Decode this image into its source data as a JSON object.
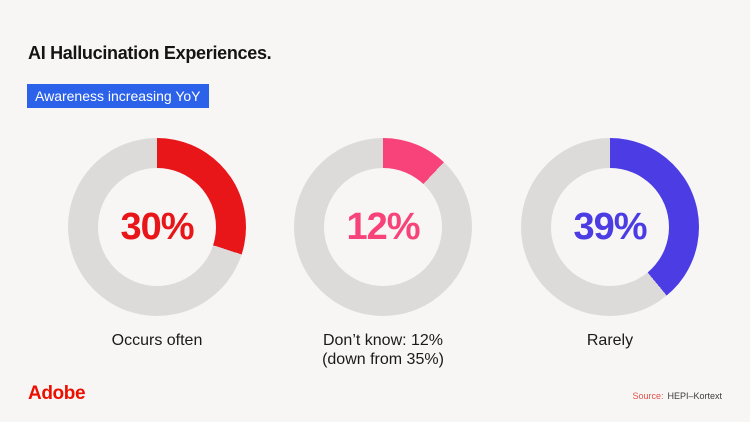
{
  "header": {
    "title": "AI Hallucination Experiences.",
    "tag": "Awareness increasing YoY",
    "tag_color": "#2b62e9"
  },
  "chart_data": {
    "type": "pie",
    "subtype": "donut",
    "title": "AI Hallucination Experiences.",
    "subtitle": "Awareness increasing YoY",
    "track_color": "#dcdbda",
    "background": "#f7f6f5",
    "charts": [
      {
        "label": "Occurs often",
        "value_pct": 30,
        "display_value": "30%",
        "caption_lines": [
          "Occurs often"
        ],
        "color": "#e81519"
      },
      {
        "label": "Don’t know",
        "value_pct": 12,
        "display_value": "12%",
        "caption_lines": [
          "Don’t know: 12%",
          "(down from 35%)"
        ],
        "color": "#f8437a"
      },
      {
        "label": "Rarely",
        "value_pct": 39,
        "display_value": "39%",
        "caption_lines": [
          "Rarely"
        ],
        "color": "#4b3ce3"
      }
    ]
  },
  "footer": {
    "logo_text": "Adobe",
    "logo_color": "#eb1000",
    "source_label": "Source:",
    "source_label_color": "#e0524b",
    "source_value": "HEPI–Kortext"
  }
}
